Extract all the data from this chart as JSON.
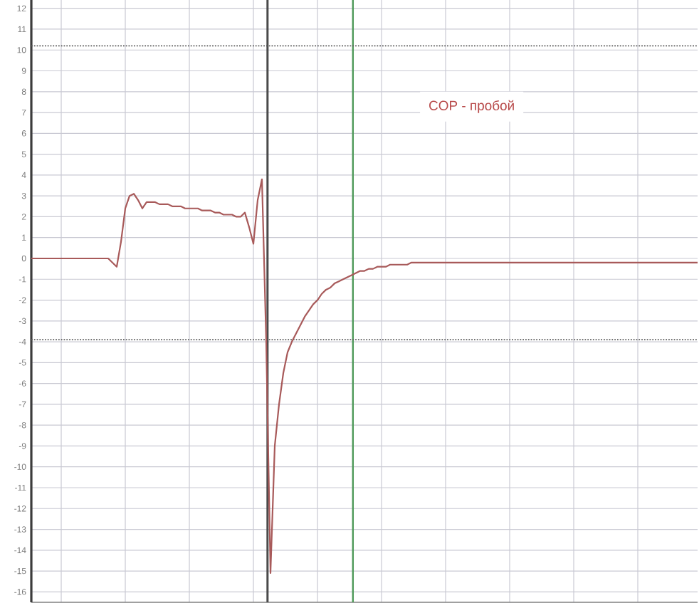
{
  "chart_data": {
    "type": "line",
    "annotations": [
      "COP - пробой"
    ],
    "categories": [
      null,
      null,
      null,
      null,
      null,
      null,
      null,
      null,
      null,
      null,
      null,
      null,
      null,
      null,
      null,
      null,
      null,
      null,
      null,
      null,
      null,
      null,
      null,
      null,
      null,
      null,
      null,
      null,
      null,
      null,
      null,
      null,
      null,
      null,
      null,
      null,
      null,
      null,
      null,
      null,
      null,
      null,
      null,
      null,
      null,
      null,
      null,
      null,
      null,
      null,
      null,
      null,
      null,
      null,
      null,
      null,
      null,
      null,
      null,
      null,
      null,
      null,
      null,
      null,
      null,
      null,
      null,
      null,
      null,
      null,
      null,
      null,
      null,
      null,
      null,
      null,
      null,
      null,
      null,
      null,
      null,
      null,
      null,
      null,
      null,
      null,
      null,
      null,
      null,
      null,
      null,
      null,
      null,
      null,
      null,
      null,
      null,
      null,
      null,
      null,
      null,
      null,
      null,
      null,
      null,
      null,
      null,
      null,
      null,
      null,
      null,
      null,
      null,
      null,
      null,
      null,
      null,
      null,
      null,
      null,
      null,
      null,
      null,
      null,
      null,
      null,
      null,
      null,
      null,
      null,
      null,
      null,
      null,
      null,
      null,
      null,
      null,
      null,
      null,
      null,
      null,
      null,
      null,
      null,
      null,
      null,
      null,
      null,
      null,
      null,
      null,
      null,
      null,
      null,
      null,
      null,
      null
    ],
    "series": [
      {
        "color": "#a85a5a",
        "values": [
          0,
          0,
          0,
          0,
          0,
          0,
          0,
          0,
          0,
          0,
          0,
          0,
          0,
          0,
          0,
          0,
          0,
          0,
          0,
          -0.2,
          -0.4,
          0.8,
          2.4,
          3.0,
          3.1,
          2.8,
          2.4,
          2.7,
          2.7,
          2.7,
          2.6,
          2.6,
          2.6,
          2.5,
          2.5,
          2.5,
          2.4,
          2.4,
          2.4,
          2.4,
          2.3,
          2.3,
          2.3,
          2.2,
          2.2,
          2.1,
          2.1,
          2.1,
          2.0,
          2.0,
          2.2,
          1.5,
          0.7,
          2.8,
          3.8,
          -4.0,
          -15.1,
          -9.0,
          -7.0,
          -5.5,
          -4.5,
          -4.0,
          -3.6,
          -3.2,
          -2.8,
          -2.5,
          -2.2,
          -2.0,
          -1.7,
          -1.5,
          -1.4,
          -1.2,
          -1.1,
          -1.0,
          -0.9,
          -0.8,
          -0.7,
          -0.6,
          -0.6,
          -0.5,
          -0.5,
          -0.4,
          -0.4,
          -0.4,
          -0.3,
          -0.3,
          -0.3,
          -0.3,
          -0.3,
          -0.2,
          -0.2,
          -0.2,
          -0.2,
          -0.2,
          -0.2,
          -0.2,
          -0.2,
          -0.2,
          -0.2,
          -0.2,
          -0.2,
          -0.2,
          -0.2,
          -0.2,
          -0.2,
          -0.2,
          -0.2,
          -0.2,
          -0.2,
          -0.2,
          -0.2,
          -0.2,
          -0.2,
          -0.2,
          -0.2,
          -0.2,
          -0.2,
          -0.2,
          -0.2,
          -0.2,
          -0.2,
          -0.2,
          -0.2,
          -0.2,
          -0.2,
          -0.2,
          -0.2,
          -0.2,
          -0.2,
          -0.2,
          -0.2,
          -0.2,
          -0.2,
          -0.2,
          -0.2,
          -0.2,
          -0.2,
          -0.2,
          -0.2,
          -0.2,
          -0.2,
          -0.2,
          -0.2,
          -0.2,
          -0.2,
          -0.2,
          -0.2,
          -0.2,
          -0.2,
          -0.2,
          -0.2,
          -0.2,
          -0.2,
          -0.2,
          -0.2,
          -0.2,
          -0.2
        ]
      }
    ],
    "ylim": [
      -16.5,
      12.4
    ],
    "yticks": [
      -16,
      -15,
      -14,
      -13,
      -12,
      -11,
      -10,
      -9,
      -8,
      -7,
      -6,
      -5,
      -4,
      -3,
      -2,
      -1,
      0,
      1,
      2,
      3,
      4,
      5,
      6,
      7,
      8,
      9,
      10,
      11,
      12
    ],
    "grid": true,
    "ref_lines": [
      {
        "axis": "y",
        "value": 10.2,
        "color": "#5a5a5a",
        "line_style": "dotted"
      },
      {
        "axis": "y",
        "value": -3.9,
        "color": "#5a5a5a",
        "line_style": "dotted"
      }
    ]
  }
}
